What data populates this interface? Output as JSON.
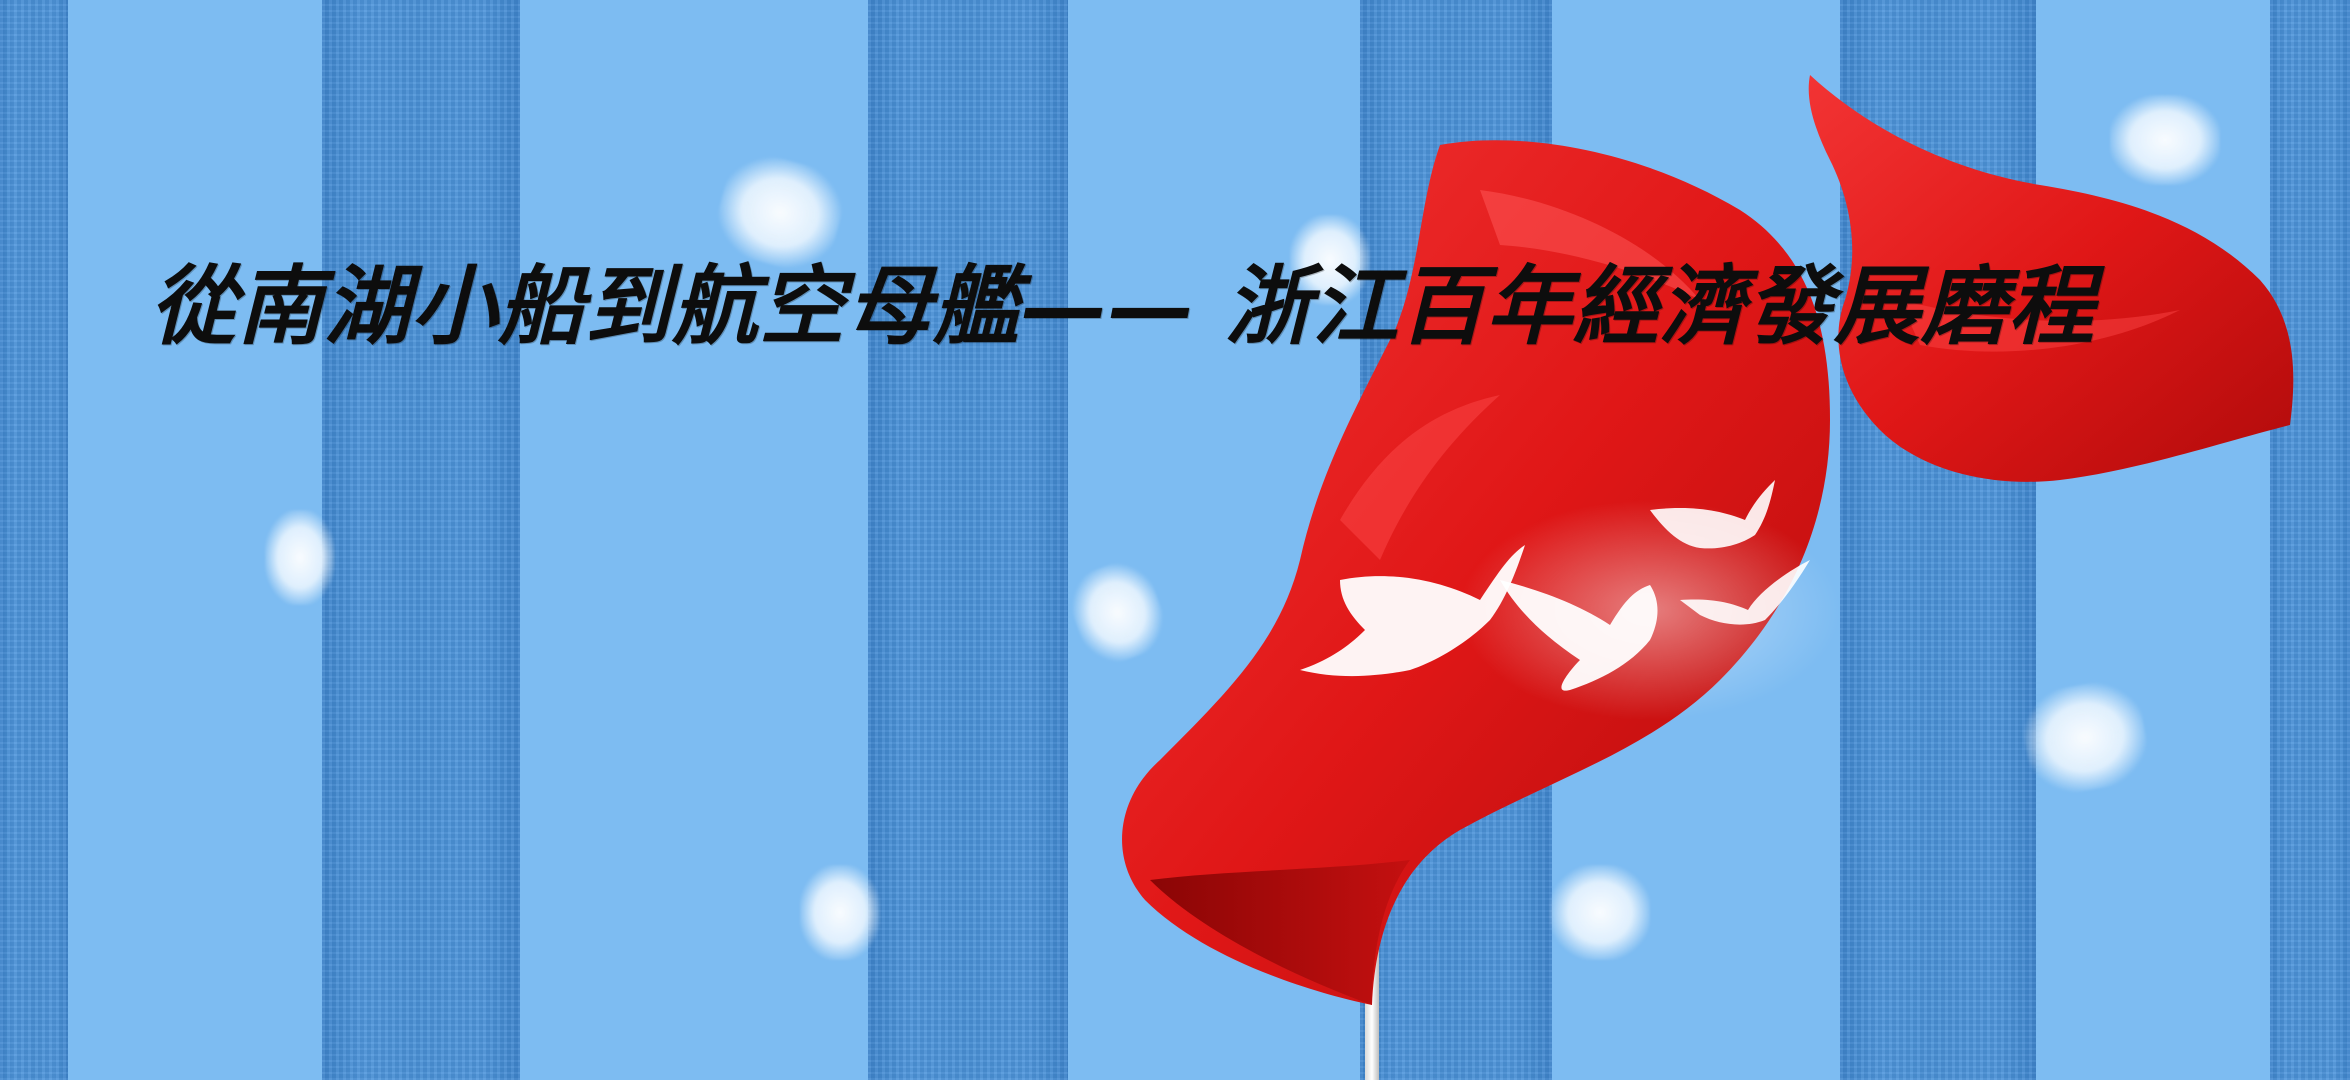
{
  "title": "從南湖小船到航空母艦—— 浙江百年經濟發展磨程",
  "colors": {
    "sky": "#7dbcf2",
    "stripe": "#4a92d8",
    "flag": "#e21b1b",
    "flag_dark": "#a80808",
    "dove": "#ffffff",
    "title": "#0d0d0d"
  },
  "icons": [
    "red-flag-icon",
    "flagpole-icon",
    "dove-icon"
  ]
}
